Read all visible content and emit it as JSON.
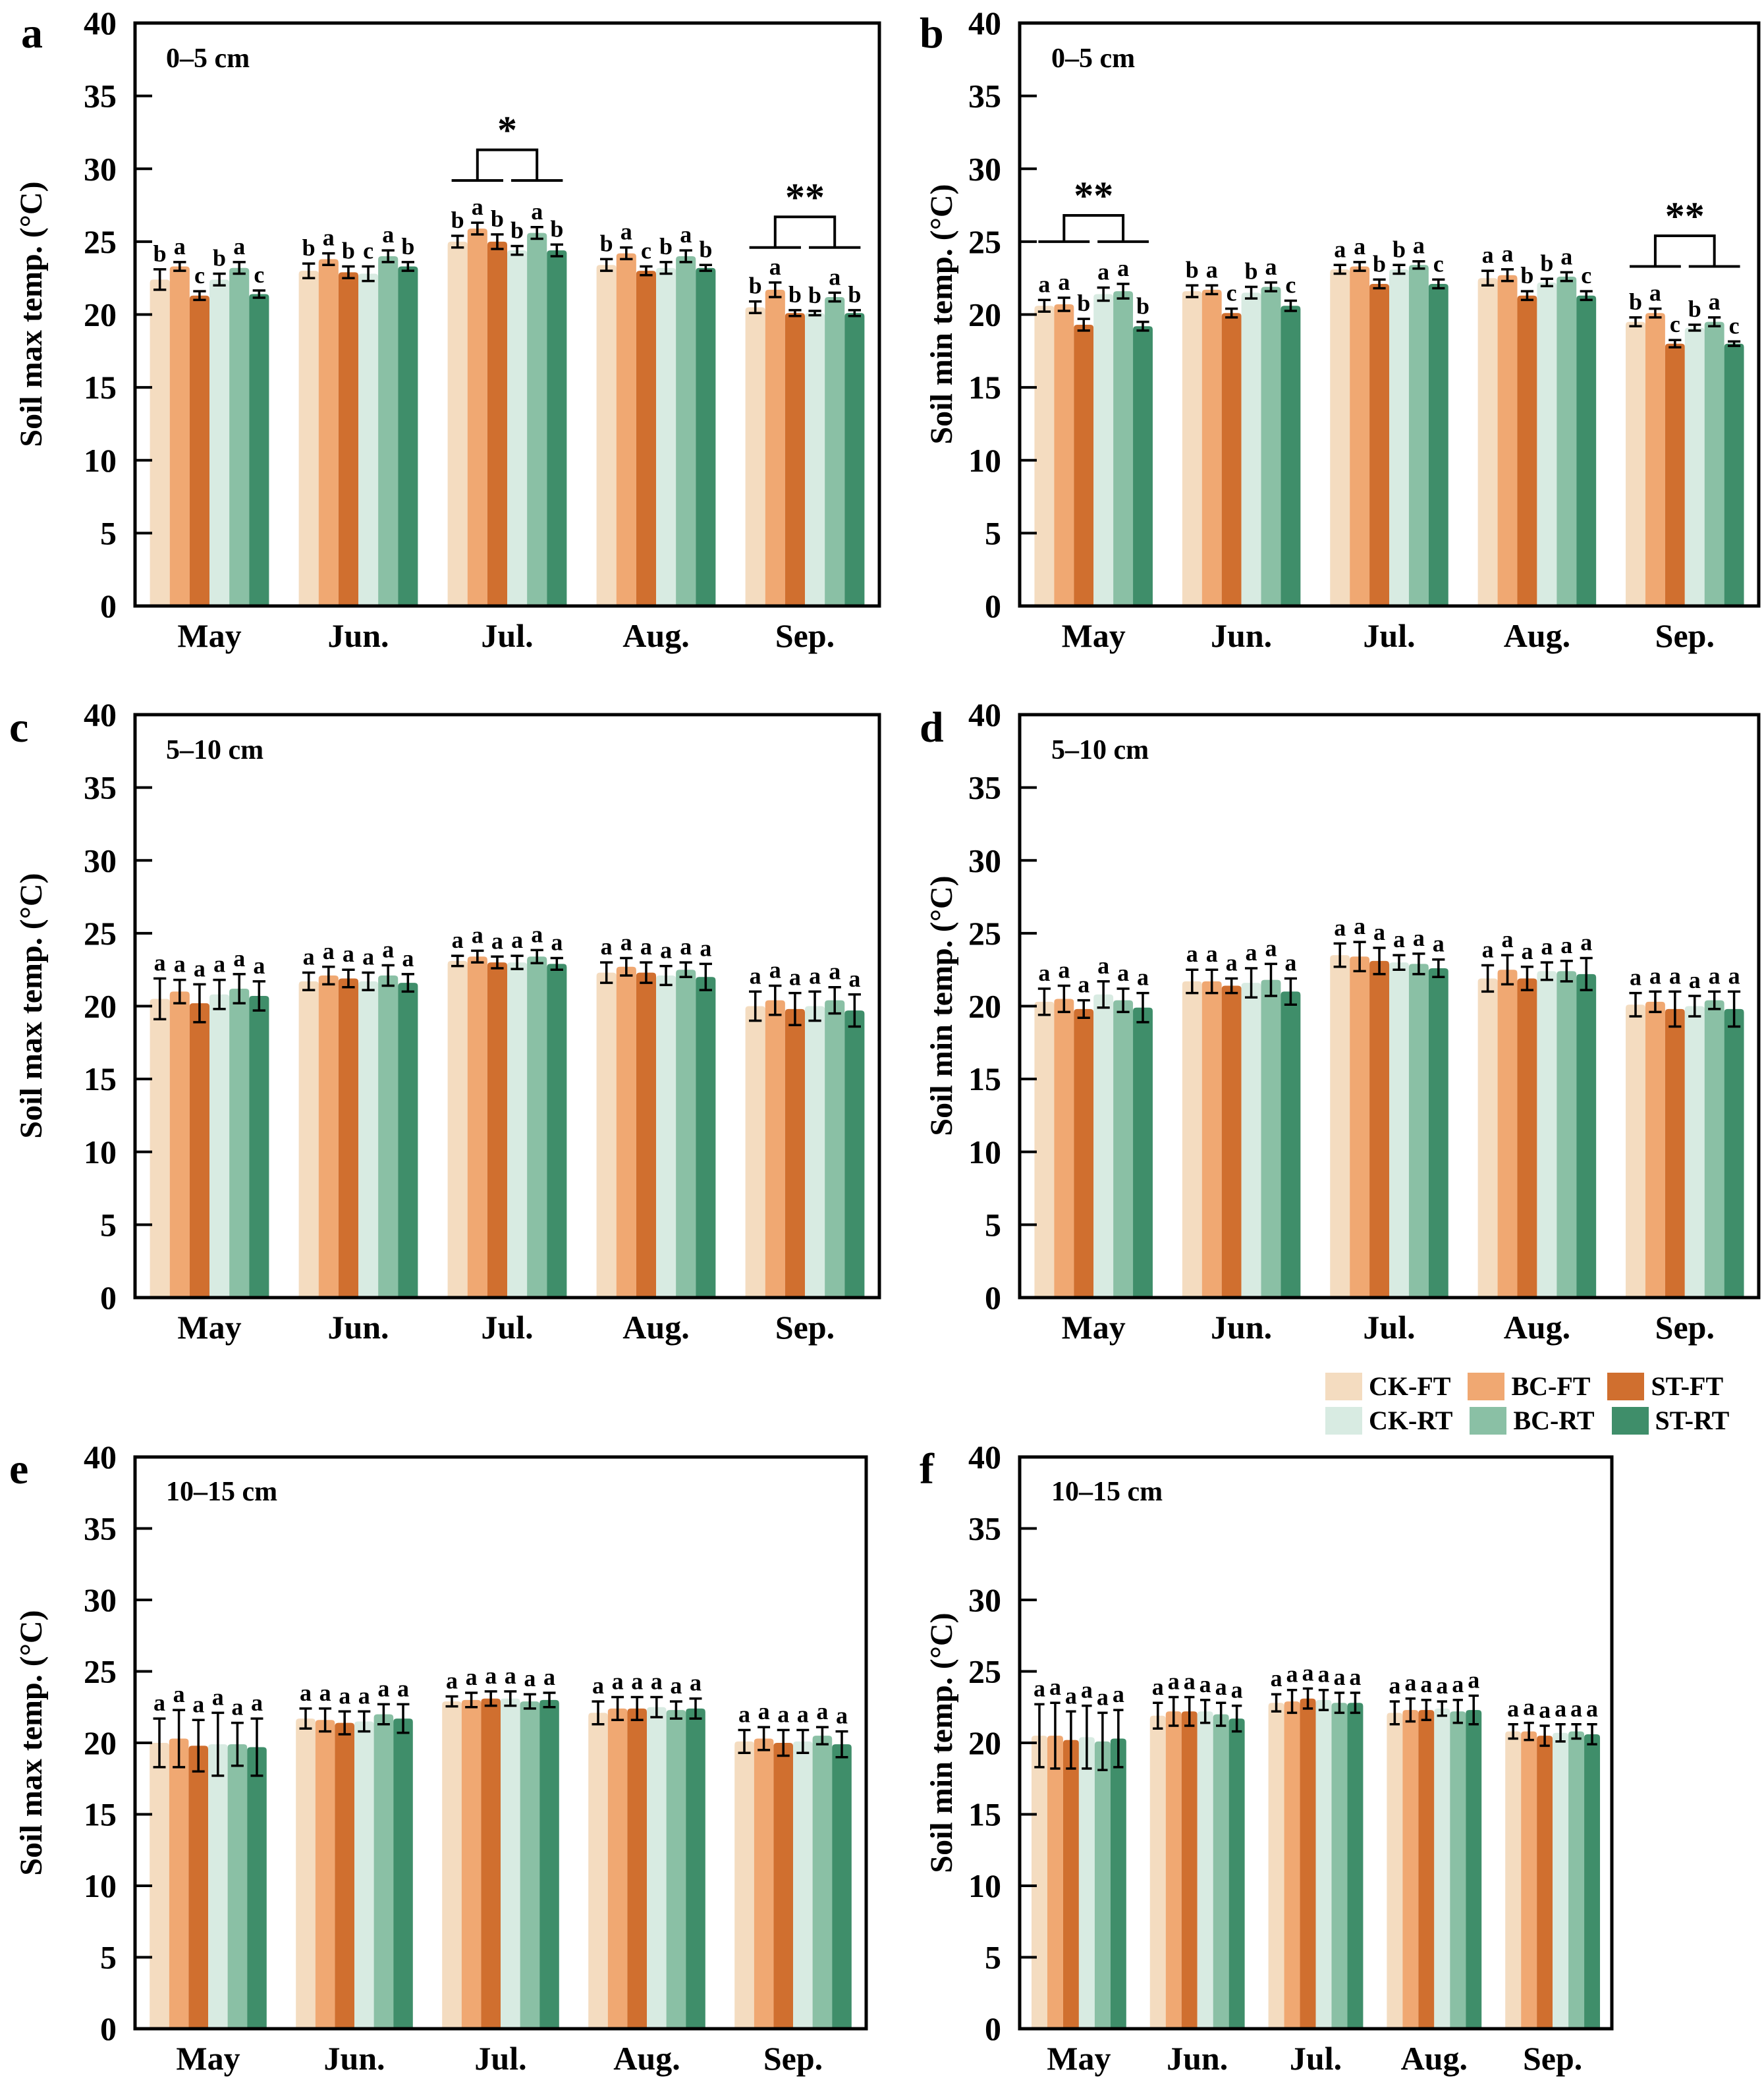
{
  "legend": {
    "items": [
      {
        "label": "CK-FT",
        "color": "#F4DCC0"
      },
      {
        "label": "BC-FT",
        "color": "#F0A872"
      },
      {
        "label": "ST-FT",
        "color": "#D06F2F"
      },
      {
        "label": "CK-RT",
        "color": "#D8EBE2"
      },
      {
        "label": "BC-RT",
        "color": "#8AC0A5"
      },
      {
        "label": "ST-RT",
        "color": "#3F8E6A"
      }
    ]
  },
  "axes": {
    "yticks": [
      0,
      5,
      10,
      15,
      20,
      25,
      30,
      35,
      40
    ],
    "ylim": [
      0,
      40
    ]
  },
  "chart_data": [
    {
      "id": "a",
      "type": "bar",
      "panel_label": "a",
      "depth_label": "0–5 cm",
      "ylabel": "Soil max temp. (°C)",
      "ylim": [
        0,
        40
      ],
      "categories": [
        "May",
        "Jun.",
        "Jul.",
        "Aug.",
        "Sep."
      ],
      "series": [
        {
          "name": "CK-FT",
          "values": [
            22.4,
            23.0,
            25.0,
            23.4,
            20.5
          ],
          "errors": [
            0.7,
            0.5,
            0.4,
            0.4,
            0.4
          ],
          "letters": [
            "b",
            "b",
            "b",
            "b",
            "b"
          ]
        },
        {
          "name": "BC-FT",
          "values": [
            23.3,
            23.8,
            25.9,
            24.2,
            21.7
          ],
          "errors": [
            0.3,
            0.4,
            0.4,
            0.4,
            0.5
          ],
          "letters": [
            "a",
            "a",
            "a",
            "a",
            "a"
          ]
        },
        {
          "name": "ST-FT",
          "values": [
            21.3,
            22.9,
            25.0,
            23.0,
            20.1
          ],
          "errors": [
            0.3,
            0.4,
            0.5,
            0.3,
            0.2
          ],
          "letters": [
            "c",
            "b",
            "b",
            "c",
            "b"
          ]
        },
        {
          "name": "CK-RT",
          "values": [
            22.4,
            22.8,
            24.4,
            23.2,
            20.1
          ],
          "errors": [
            0.4,
            0.5,
            0.3,
            0.4,
            0.15
          ],
          "letters": [
            "b",
            "c",
            "b",
            "b",
            "b"
          ]
        },
        {
          "name": "BC-RT",
          "values": [
            23.2,
            24.0,
            25.6,
            24.0,
            21.2
          ],
          "errors": [
            0.4,
            0.4,
            0.4,
            0.4,
            0.3
          ],
          "letters": [
            "a",
            "a",
            "a",
            "a",
            "a"
          ]
        },
        {
          "name": "ST-RT",
          "values": [
            21.4,
            23.3,
            24.4,
            23.2,
            20.1
          ],
          "errors": [
            0.25,
            0.3,
            0.4,
            0.2,
            0.2
          ],
          "letters": [
            "c",
            "b",
            "b",
            "b",
            "b"
          ]
        }
      ],
      "significance": [
        {
          "month_index": 2,
          "label": "*",
          "bracket_low": 29.2,
          "bracket_high": 31.3
        },
        {
          "month_index": 4,
          "label": "**",
          "bracket_low": 24.6,
          "bracket_high": 26.7
        }
      ]
    },
    {
      "id": "b",
      "type": "bar",
      "panel_label": "b",
      "depth_label": "0–5 cm",
      "ylabel": "Soil min temp. (°C)",
      "ylim": [
        0,
        40
      ],
      "categories": [
        "May",
        "Jun.",
        "Jul.",
        "Aug.",
        "Sep."
      ],
      "series": [
        {
          "name": "CK-FT",
          "values": [
            20.6,
            21.6,
            23.1,
            22.5,
            19.5
          ],
          "errors": [
            0.4,
            0.4,
            0.3,
            0.5,
            0.3
          ],
          "letters": [
            "a",
            "b",
            "a",
            "a",
            "b"
          ]
        },
        {
          "name": "BC-FT",
          "values": [
            20.7,
            21.7,
            23.3,
            22.7,
            20.1
          ],
          "errors": [
            0.45,
            0.3,
            0.3,
            0.4,
            0.3
          ],
          "letters": [
            "a",
            "a",
            "a",
            "a",
            "a"
          ]
        },
        {
          "name": "ST-FT",
          "values": [
            19.3,
            20.1,
            22.1,
            21.3,
            18.0
          ],
          "errors": [
            0.4,
            0.3,
            0.3,
            0.3,
            0.25
          ],
          "letters": [
            "b",
            "c",
            "b",
            "b",
            "c"
          ]
        },
        {
          "name": "CK-RT",
          "values": [
            21.4,
            21.5,
            23.1,
            22.2,
            19.1
          ],
          "errors": [
            0.45,
            0.4,
            0.3,
            0.25,
            0.2
          ],
          "letters": [
            "a",
            "b",
            "b",
            "b",
            "b"
          ]
        },
        {
          "name": "BC-RT",
          "values": [
            21.6,
            21.9,
            23.4,
            22.6,
            19.5
          ],
          "errors": [
            0.5,
            0.3,
            0.25,
            0.3,
            0.3
          ],
          "letters": [
            "a",
            "a",
            "a",
            "a",
            "a"
          ]
        },
        {
          "name": "ST-RT",
          "values": [
            19.2,
            20.6,
            22.1,
            21.3,
            18.0
          ],
          "errors": [
            0.3,
            0.35,
            0.3,
            0.3,
            0.15
          ],
          "letters": [
            "b",
            "c",
            "c",
            "c",
            "c"
          ]
        }
      ],
      "significance": [
        {
          "month_index": 0,
          "label": "**",
          "bracket_low": 25.0,
          "bracket_high": 26.8
        },
        {
          "month_index": 4,
          "label": "**",
          "bracket_low": 23.3,
          "bracket_high": 25.4
        }
      ]
    },
    {
      "id": "c",
      "type": "bar",
      "panel_label": "c",
      "depth_label": "5–10 cm",
      "ylabel": "Soil max temp. (°C)",
      "ylim": [
        0,
        40
      ],
      "categories": [
        "May",
        "Jun.",
        "Jul.",
        "Aug.",
        "Sep."
      ],
      "series": [
        {
          "name": "CK-FT",
          "values": [
            20.5,
            21.7,
            23.1,
            22.3,
            20.0
          ],
          "errors": [
            1.4,
            0.6,
            0.35,
            0.7,
            1.0
          ],
          "letters": [
            "a",
            "a",
            "a",
            "a",
            "a"
          ]
        },
        {
          "name": "BC-FT",
          "values": [
            21.0,
            22.1,
            23.4,
            22.7,
            20.4
          ],
          "errors": [
            0.8,
            0.6,
            0.4,
            0.6,
            1.0
          ],
          "letters": [
            "a",
            "a",
            "a",
            "a",
            "a"
          ]
        },
        {
          "name": "ST-FT",
          "values": [
            20.2,
            21.9,
            23.0,
            22.3,
            19.8
          ],
          "errors": [
            1.3,
            0.6,
            0.4,
            0.7,
            1.1
          ],
          "letters": [
            "a",
            "a",
            "a",
            "a",
            "a"
          ]
        },
        {
          "name": "CK-RT",
          "values": [
            20.8,
            21.7,
            23.0,
            22.1,
            20.0
          ],
          "errors": [
            1.0,
            0.6,
            0.45,
            0.65,
            1.0
          ],
          "letters": [
            "a",
            "a",
            "a",
            "a",
            "a"
          ]
        },
        {
          "name": "BC-RT",
          "values": [
            21.2,
            22.1,
            23.4,
            22.5,
            20.4
          ],
          "errors": [
            1.0,
            0.7,
            0.45,
            0.5,
            0.9
          ],
          "letters": [
            "a",
            "a",
            "a",
            "a",
            "a"
          ]
        },
        {
          "name": "ST-RT",
          "values": [
            20.7,
            21.6,
            22.9,
            22.0,
            19.7
          ],
          "errors": [
            1.0,
            0.6,
            0.4,
            0.9,
            1.1
          ],
          "letters": [
            "a",
            "a",
            "a",
            "a",
            "a"
          ]
        }
      ],
      "significance": []
    },
    {
      "id": "d",
      "type": "bar",
      "panel_label": "d",
      "depth_label": "5–10 cm",
      "ylabel": "Soil min temp. (°C)",
      "ylim": [
        0,
        40
      ],
      "categories": [
        "May",
        "Jun.",
        "Jul.",
        "Aug.",
        "Sep."
      ],
      "series": [
        {
          "name": "CK-FT",
          "values": [
            20.3,
            21.7,
            23.5,
            21.9,
            20.1
          ],
          "errors": [
            0.9,
            0.8,
            0.8,
            0.9,
            0.8
          ],
          "letters": [
            "a",
            "a",
            "a",
            "a",
            "a"
          ]
        },
        {
          "name": "BC-FT",
          "values": [
            20.5,
            21.7,
            23.4,
            22.5,
            20.3
          ],
          "errors": [
            0.9,
            0.8,
            1.0,
            1.0,
            0.7
          ],
          "letters": [
            "a",
            "a",
            "a",
            "a",
            "a"
          ]
        },
        {
          "name": "ST-FT",
          "values": [
            19.8,
            21.4,
            23.1,
            21.9,
            19.8
          ],
          "errors": [
            0.6,
            0.5,
            0.9,
            0.8,
            1.2
          ],
          "letters": [
            "a",
            "a",
            "a",
            "a",
            "a"
          ]
        },
        {
          "name": "CK-RT",
          "values": [
            20.8,
            21.6,
            23.0,
            22.4,
            20.0
          ],
          "errors": [
            0.9,
            1.0,
            0.5,
            0.6,
            0.7
          ],
          "letters": [
            "a",
            "a",
            "a",
            "a",
            "a"
          ]
        },
        {
          "name": "BC-RT",
          "values": [
            20.4,
            21.8,
            22.9,
            22.4,
            20.4
          ],
          "errors": [
            0.8,
            1.1,
            0.7,
            0.7,
            0.6
          ],
          "letters": [
            "a",
            "a",
            "a",
            "a",
            "a"
          ]
        },
        {
          "name": "ST-RT",
          "values": [
            19.9,
            21.0,
            22.6,
            22.2,
            19.8
          ],
          "errors": [
            1.0,
            0.9,
            0.6,
            1.1,
            1.2
          ],
          "letters": [
            "a",
            "a",
            "a",
            "a",
            "a"
          ]
        }
      ],
      "significance": []
    },
    {
      "id": "e",
      "type": "bar",
      "panel_label": "e",
      "depth_label": "10–15 cm",
      "ylabel": "Soil max temp. (°C)",
      "ylim": [
        0,
        40
      ],
      "categories": [
        "May",
        "Jun.",
        "Jul.",
        "Aug.",
        "Sep."
      ],
      "series": [
        {
          "name": "CK-FT",
          "values": [
            20.0,
            21.7,
            22.9,
            22.1,
            20.1
          ],
          "errors": [
            1.7,
            0.7,
            0.35,
            0.8,
            0.8
          ],
          "letters": [
            "a",
            "a",
            "a",
            "a",
            "a"
          ]
        },
        {
          "name": "BC-FT",
          "values": [
            20.3,
            21.6,
            23.0,
            22.4,
            20.3
          ],
          "errors": [
            2.0,
            0.8,
            0.5,
            0.8,
            0.8
          ],
          "letters": [
            "a",
            "a",
            "a",
            "a",
            "a"
          ]
        },
        {
          "name": "ST-FT",
          "values": [
            19.8,
            21.4,
            23.1,
            22.4,
            20.0
          ],
          "errors": [
            1.8,
            0.8,
            0.5,
            0.8,
            0.9
          ],
          "letters": [
            "a",
            "a",
            "a",
            "a",
            "a"
          ]
        },
        {
          "name": "CK-RT",
          "values": [
            19.9,
            21.5,
            23.1,
            22.5,
            20.1
          ],
          "errors": [
            2.2,
            0.7,
            0.5,
            0.7,
            0.8
          ],
          "letters": [
            "a",
            "a",
            "a",
            "a",
            "a"
          ]
        },
        {
          "name": "BC-RT",
          "values": [
            19.9,
            22.0,
            22.9,
            22.3,
            20.5
          ],
          "errors": [
            1.5,
            0.7,
            0.5,
            0.6,
            0.6
          ],
          "letters": [
            "a",
            "a",
            "a",
            "a",
            "a"
          ]
        },
        {
          "name": "ST-RT",
          "values": [
            19.7,
            21.7,
            23.0,
            22.4,
            19.9
          ],
          "errors": [
            2.0,
            1.0,
            0.5,
            0.7,
            0.9
          ],
          "letters": [
            "a",
            "a",
            "a",
            "a",
            "a"
          ]
        }
      ],
      "significance": []
    },
    {
      "id": "f",
      "type": "bar",
      "panel_label": "f",
      "depth_label": "10–15 cm",
      "ylabel": "Soil min temp. (°C)",
      "ylim": [
        0,
        40
      ],
      "categories": [
        "May",
        "Jun.",
        "Jul.",
        "Aug.",
        "Sep."
      ],
      "series": [
        {
          "name": "CK-FT",
          "values": [
            20.5,
            21.9,
            22.8,
            22.1,
            20.8
          ],
          "errors": [
            2.2,
            0.9,
            0.6,
            0.8,
            0.5
          ],
          "letters": [
            "a",
            "a",
            "a",
            "a",
            "a"
          ]
        },
        {
          "name": "BC-FT",
          "values": [
            20.5,
            22.2,
            22.9,
            22.3,
            20.8
          ],
          "errors": [
            2.3,
            1.0,
            0.8,
            0.8,
            0.6
          ],
          "letters": [
            "a",
            "a",
            "a",
            "a",
            "a"
          ]
        },
        {
          "name": "ST-FT",
          "values": [
            20.2,
            22.2,
            23.1,
            22.3,
            20.5
          ],
          "errors": [
            2.0,
            1.0,
            0.7,
            0.7,
            0.7
          ],
          "letters": [
            "a",
            "a",
            "a",
            "a",
            "a"
          ]
        },
        {
          "name": "CK-RT",
          "values": [
            20.4,
            22.2,
            23.0,
            22.4,
            20.7
          ],
          "errors": [
            2.2,
            0.8,
            0.7,
            0.5,
            0.6
          ],
          "letters": [
            "a",
            "a",
            "a",
            "a",
            "a"
          ]
        },
        {
          "name": "BC-RT",
          "values": [
            20.1,
            22.0,
            22.8,
            22.2,
            20.8
          ],
          "errors": [
            2.0,
            0.8,
            0.7,
            0.8,
            0.5
          ],
          "letters": [
            "a",
            "a",
            "a",
            "a",
            "a"
          ]
        },
        {
          "name": "ST-RT",
          "values": [
            20.3,
            21.7,
            22.8,
            22.3,
            20.6
          ],
          "errors": [
            2.0,
            0.9,
            0.7,
            1.0,
            0.7
          ],
          "letters": [
            "a",
            "a",
            "a",
            "a",
            "a"
          ]
        }
      ],
      "significance": []
    }
  ]
}
